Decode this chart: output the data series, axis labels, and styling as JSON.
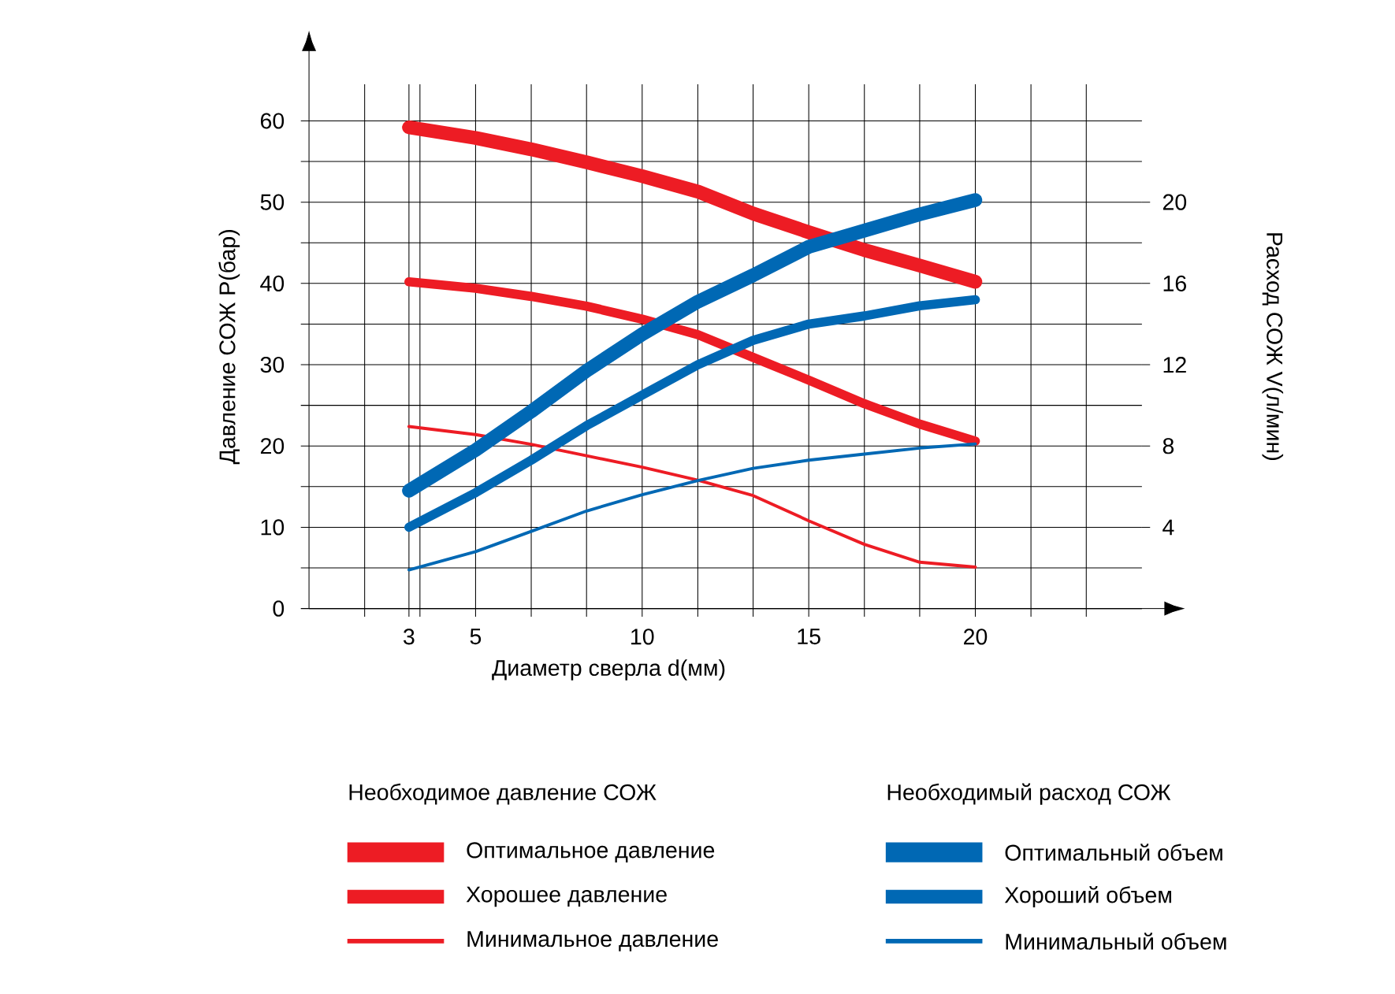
{
  "chart_data": {
    "type": "line",
    "xlabel": "Диаметр сверла d(мм)",
    "ylabel": "Давление СОЖ P(бар)",
    "y2label": "Расход СОЖ V(л/мин)",
    "annotations": [
      "Необходимое давление СОЖ",
      "Необходимый расход СОЖ"
    ],
    "x": [
      3,
      5,
      6.67,
      8.33,
      10,
      11.67,
      13.33,
      15,
      16.67,
      18.33,
      20
    ],
    "series": [
      {
        "name": "Оптимальное давление",
        "color": "#ed1c24",
        "values": [
          59.2,
          57.9,
          56.5,
          54.9,
          53.2,
          51.3,
          48.6,
          46.3,
          44.1,
          42.2,
          40.2
        ]
      },
      {
        "name": "Хорошее давление",
        "color": "#ed1c24",
        "values": [
          40.2,
          39.4,
          38.4,
          37.2,
          35.6,
          33.7,
          30.9,
          28.1,
          25.2,
          22.7,
          20.6
        ]
      },
      {
        "name": "Минимальное давление",
        "color": "#ed1c24",
        "values": [
          22.4,
          21.4,
          20.2,
          18.8,
          17.4,
          15.8,
          13.9,
          10.8,
          7.9,
          5.7,
          5.1
        ]
      },
      {
        "name": "Оптимальный объем",
        "color": "#0068b4",
        "axis": "y2",
        "values": [
          5.8,
          7.8,
          9.7,
          11.7,
          13.5,
          15.1,
          16.4,
          17.8,
          18.6,
          19.4,
          20.1
        ]
      },
      {
        "name": "Хороший объем",
        "color": "#0068b4",
        "axis": "y2",
        "values": [
          4.0,
          5.7,
          7.3,
          9.0,
          10.5,
          12.0,
          13.2,
          14.0,
          14.4,
          14.9,
          15.2
        ]
      },
      {
        "name": "Минимальный объем",
        "color": "#0068b4",
        "axis": "y2",
        "values": [
          1.9,
          2.8,
          3.8,
          4.8,
          5.6,
          6.3,
          6.9,
          7.3,
          7.6,
          7.9,
          8.1
        ]
      }
    ],
    "xlim": [
      0,
      25
    ],
    "xticks": [
      {
        "value": 1.67,
        "label": null
      },
      3,
      {
        "value": 3.33,
        "label": null
      },
      5,
      {
        "value": 6.67,
        "label": null
      },
      {
        "value": 8.33,
        "label": null
      },
      10,
      {
        "value": 11.67,
        "label": null
      },
      {
        "value": 13.33,
        "label": null
      },
      15,
      {
        "value": 16.67,
        "label": null
      },
      {
        "value": 18.33,
        "label": null
      },
      20,
      {
        "value": 21.67,
        "label": null
      },
      {
        "value": 23.33,
        "label": null
      }
    ],
    "ylim": [
      0,
      64.5
    ],
    "yticks": [
      0,
      {
        "value": 5,
        "label": null
      },
      10,
      {
        "value": 15,
        "label": null
      },
      20,
      {
        "value": 25,
        "label": null
      },
      30,
      {
        "value": 35,
        "label": null
      },
      40,
      {
        "value": 45,
        "label": null
      },
      50,
      {
        "value": 55,
        "label": null
      },
      60
    ],
    "y2lim": [
      0,
      25.8
    ],
    "y2ticks": [
      4,
      8,
      12,
      16,
      20
    ],
    "grid": true,
    "legend": "bottom",
    "marker": "none",
    "line_style": "solid"
  }
}
